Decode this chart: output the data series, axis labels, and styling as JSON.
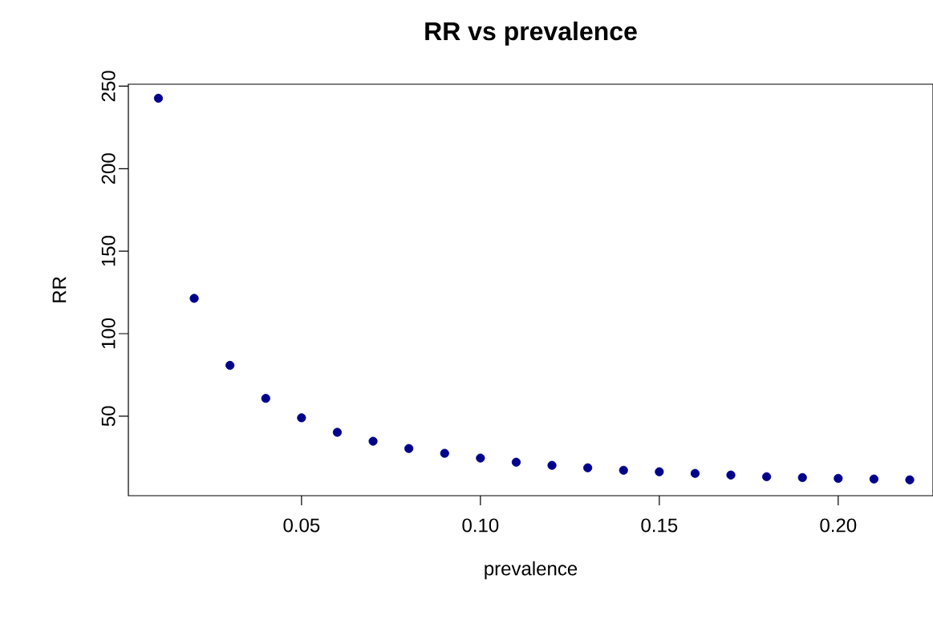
{
  "chart_data": {
    "type": "scatter",
    "title": "RR vs prevalence",
    "xlabel": "prevalence",
    "ylabel": "RR",
    "x": [
      0.01,
      0.02,
      0.03,
      0.04,
      0.05,
      0.06,
      0.07,
      0.08,
      0.09,
      0.1,
      0.11,
      0.12,
      0.13,
      0.14,
      0.15,
      0.16,
      0.17,
      0.18,
      0.19,
      0.2,
      0.21,
      0.22
    ],
    "series": [
      {
        "color": "#00008b",
        "values": [
          242.7,
          121.4,
          80.8,
          60.8,
          49,
          40.2,
          34.8,
          30.4,
          27.5,
          24.6,
          22.1,
          20.2,
          18.7,
          17.2,
          16.3,
          15.3,
          14.3,
          13.3,
          12.8,
          12.3,
          11.9,
          11.4
        ]
      }
    ],
    "xlim": [
      0.0016,
      0.2265
    ],
    "ylim": [
      1.8,
      251.2
    ],
    "xticks": [
      {
        "value": 0.05,
        "label": "0.05"
      },
      {
        "value": 0.1,
        "label": "0.10"
      },
      {
        "value": 0.15,
        "label": "0.15"
      },
      {
        "value": 0.2,
        "label": "0.20"
      }
    ],
    "yticks": [
      50,
      100,
      150,
      200,
      250
    ],
    "marker": "circle",
    "grid": false
  }
}
